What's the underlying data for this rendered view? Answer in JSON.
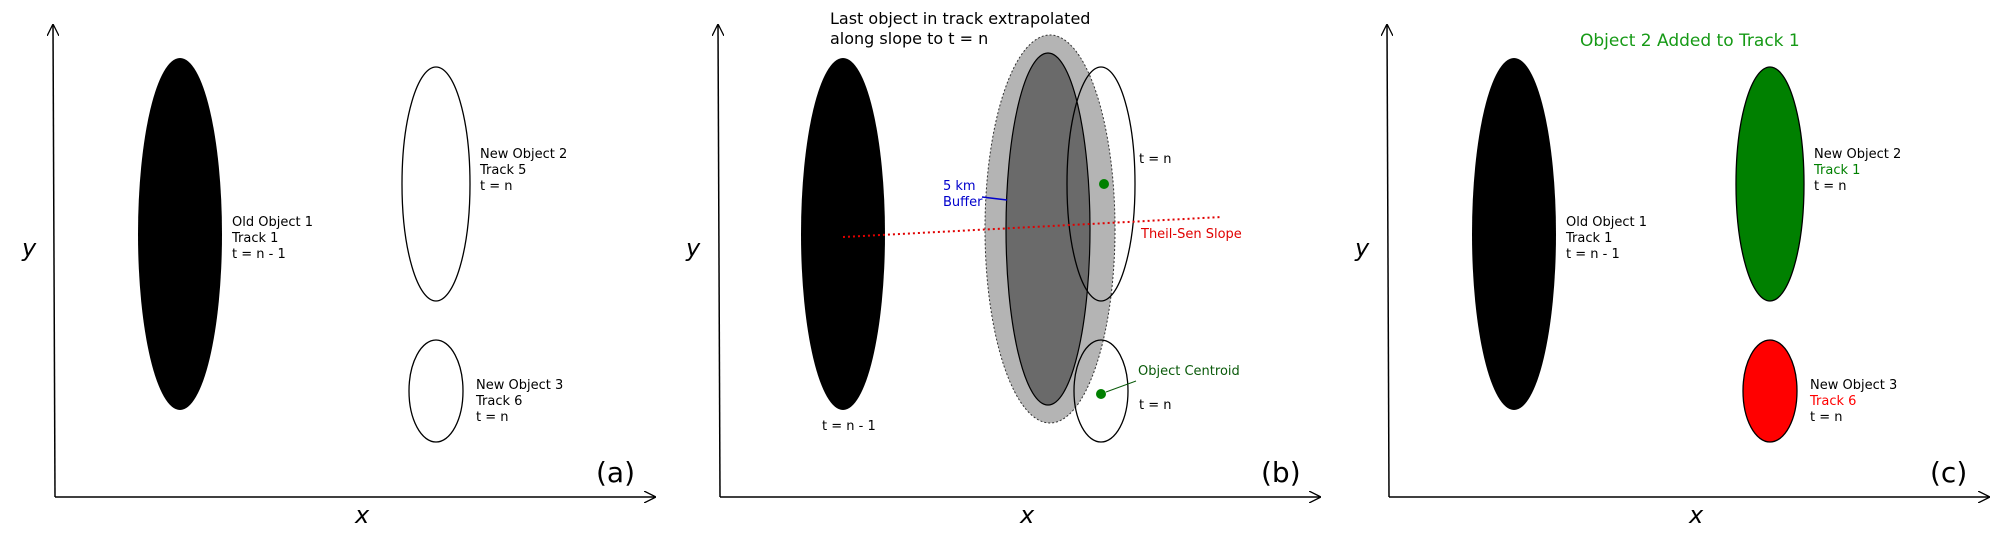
{
  "colors": {
    "black": "#000000",
    "green": "#008000",
    "red": "#ff0000",
    "title_green": "#169a16",
    "dark_green_text": "#0a5a0a",
    "buffer_gray": "#b4b4b4",
    "extrap_gray": "#6a6a6a",
    "slope_red": "#e00000",
    "buffer_blue": "#0000cc"
  },
  "axes": {
    "x": "x",
    "y": "y"
  },
  "panels": {
    "a": {
      "label": "(a)",
      "old_object": [
        "Old Object 1",
        "Track 1",
        "t = n - 1"
      ],
      "new_object_2": [
        "New Object 2",
        "Track 5",
        "t = n"
      ],
      "new_object_3": [
        "New Object 3",
        "Track 6",
        "t = n"
      ]
    },
    "b": {
      "label": "(b)",
      "title": [
        "Last object in track extrapolated",
        "along slope to t = n"
      ],
      "buffer": [
        "5 km",
        "Buffer"
      ],
      "t_n_upper": "t = n",
      "slope": "Theil-Sen Slope",
      "centroid": "Object Centroid",
      "t_n_lower": "t = n",
      "t_prev": "t = n - 1"
    },
    "c": {
      "label": "(c)",
      "title": "Object 2 Added to Track 1",
      "old_object": [
        "Old Object 1",
        "Track 1",
        "t = n - 1"
      ],
      "new_object_2": [
        "New Object 2",
        "Track 1",
        "t = n"
      ],
      "new_object_3": [
        "New Object 3",
        "Track 6",
        "t = n"
      ]
    }
  }
}
